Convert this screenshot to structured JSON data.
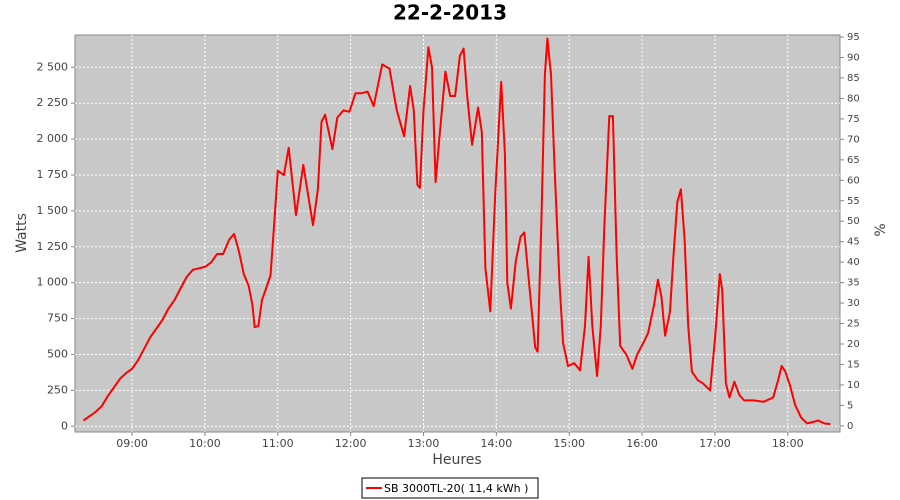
{
  "chart_data": {
    "type": "line",
    "title": "22-2-2013",
    "x_label": "Heures",
    "y_label": "Watts",
    "y2_label": "%",
    "x": [
      "08:20",
      "08:25",
      "08:30",
      "08:35",
      "08:40",
      "08:45",
      "08:50",
      "08:55",
      "09:00",
      "09:05",
      "09:10",
      "09:15",
      "09:20",
      "09:25",
      "09:30",
      "09:35",
      "09:40",
      "09:45",
      "09:50",
      "09:55",
      "10:00",
      "10:05",
      "10:10",
      "10:15",
      "10:20",
      "10:24",
      "10:28",
      "10:32",
      "10:36",
      "10:39",
      "10:41",
      "10:44",
      "10:47",
      "10:50",
      "10:54",
      "10:57",
      "11:00",
      "11:05",
      "11:09",
      "11:15",
      "11:21",
      "11:29",
      "11:33",
      "11:36",
      "11:39",
      "11:45",
      "11:49",
      "11:54",
      "11:59",
      "12:04",
      "12:09",
      "12:14",
      "12:19",
      "12:26",
      "12:32",
      "12:38",
      "12:44",
      "12:49",
      "12:52",
      "12:55",
      "12:57",
      "13:00",
      "13:04",
      "13:07",
      "13:10",
      "13:13",
      "13:18",
      "13:22",
      "13:26",
      "13:30",
      "13:33",
      "13:36",
      "13:40",
      "13:45",
      "13:48",
      "13:51",
      "13:55",
      "13:59",
      "14:04",
      "14:07",
      "14:09",
      "14:12",
      "14:16",
      "14:20",
      "14:23",
      "14:28",
      "14:32",
      "14:34",
      "14:37",
      "14:40",
      "14:42",
      "14:45",
      "14:48",
      "14:52",
      "14:55",
      "14:59",
      "15:04",
      "15:09",
      "15:13",
      "15:16",
      "15:19",
      "15:23",
      "15:26",
      "15:29",
      "15:33",
      "15:36",
      "15:39",
      "15:42",
      "15:47",
      "15:52",
      "15:56",
      "16:01",
      "16:05",
      "16:10",
      "16:13",
      "16:16",
      "16:19",
      "16:23",
      "16:26",
      "16:29",
      "16:32",
      "16:35",
      "16:38",
      "16:41",
      "16:46",
      "16:50",
      "16:56",
      "17:00",
      "17:04",
      "17:06",
      "17:09",
      "17:12",
      "17:16",
      "17:20",
      "17:24",
      "17:32",
      "17:40",
      "17:48",
      "17:52",
      "17:55",
      "17:58",
      "18:02",
      "18:06",
      "18:11",
      "18:16",
      "18:21",
      "18:25",
      "18:30",
      "18:35"
    ],
    "series": [
      {
        "name": "SB 3000TL-20( 11,4 kWh )",
        "color": "#ff0000",
        "values": [
          40,
          70,
          100,
          140,
          210,
          270,
          330,
          370,
          400,
          460,
          540,
          620,
          680,
          740,
          820,
          880,
          960,
          1040,
          1090,
          1100,
          1110,
          1140,
          1200,
          1200,
          1300,
          1340,
          1220,
          1060,
          980,
          850,
          690,
          700,
          880,
          950,
          1050,
          1400,
          1780,
          1750,
          1940,
          1470,
          1820,
          1400,
          1650,
          2120,
          2170,
          1930,
          2150,
          2200,
          2190,
          2320,
          2320,
          2330,
          2230,
          2520,
          2490,
          2200,
          2020,
          2370,
          2200,
          1680,
          1660,
          2200,
          2640,
          2500,
          1700,
          2000,
          2470,
          2300,
          2300,
          2580,
          2630,
          2300,
          1960,
          2220,
          2050,
          1100,
          800,
          1600,
          2400,
          1900,
          1000,
          820,
          1150,
          1320,
          1350,
          900,
          550,
          520,
          1400,
          2450,
          2700,
          2450,
          1800,
          1000,
          580,
          420,
          440,
          390,
          700,
          1180,
          700,
          350,
          700,
          1400,
          2160,
          2160,
          1200,
          560,
          500,
          400,
          500,
          580,
          650,
          850,
          1020,
          900,
          630,
          800,
          1200,
          1560,
          1650,
          1300,
          700,
          380,
          320,
          300,
          250,
          600,
          1060,
          950,
          300,
          200,
          310,
          220,
          180,
          180,
          170,
          200,
          320,
          420,
          380,
          280,
          150,
          60,
          20,
          30,
          40,
          20,
          15
        ]
      }
    ],
    "xlim": [
      "08:13",
      "18:43"
    ],
    "xticks": [
      "09:00",
      "10:00",
      "11:00",
      "12:00",
      "13:00",
      "14:00",
      "15:00",
      "16:00",
      "17:00",
      "18:00"
    ],
    "ylim": [
      -40,
      2725
    ],
    "yticks": [
      0,
      250,
      500,
      750,
      {
        "value": 1000,
        "label": "1 000"
      },
      {
        "value": 1250,
        "label": "1 250"
      },
      {
        "value": 1500,
        "label": "1 500"
      },
      {
        "value": 1750,
        "label": "1 750"
      },
      {
        "value": 2000,
        "label": "2 000"
      },
      {
        "value": 2250,
        "label": "2 250"
      },
      {
        "value": 2500,
        "label": "2 500"
      }
    ],
    "y2lim": [
      -1.5,
      95.5
    ],
    "y2ticks": [
      0,
      5,
      10,
      15,
      20,
      25,
      30,
      35,
      40,
      45,
      50,
      55,
      60,
      65,
      70,
      75,
      80,
      85,
      90,
      95
    ],
    "grid": true,
    "legend": "bottom"
  }
}
